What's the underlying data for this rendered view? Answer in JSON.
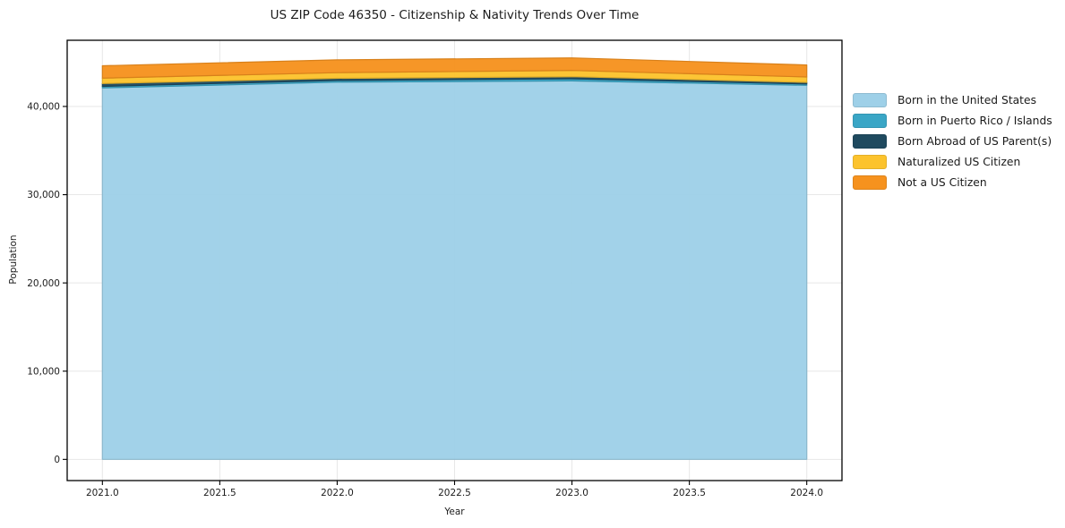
{
  "title": "US ZIP Code 46350 - Citizenship & Nativity Trends Over Time",
  "chart_data": {
    "type": "area",
    "stacked": true,
    "title": "US ZIP Code 46350 - Citizenship & Nativity Trends Over Time",
    "xlabel": "Year",
    "ylabel": "Population",
    "x": [
      2021,
      2022,
      2023,
      2024
    ],
    "xlim": [
      2020.85,
      2024.15
    ],
    "ylim": [
      -2400,
      47500
    ],
    "grid": true,
    "legend_position": "right-of-plot",
    "xticks": [
      {
        "value": 2021.0,
        "label": "2021.0"
      },
      {
        "value": 2021.5,
        "label": "2021.5"
      },
      {
        "value": 2022.0,
        "label": "2022.0"
      },
      {
        "value": 2022.5,
        "label": "2022.5"
      },
      {
        "value": 2023.0,
        "label": "2023.0"
      },
      {
        "value": 2023.5,
        "label": "2023.5"
      },
      {
        "value": 2024.0,
        "label": "2024.0"
      }
    ],
    "yticks": [
      {
        "value": 0,
        "label": "0"
      },
      {
        "value": 10000,
        "label": "10,000"
      },
      {
        "value": 20000,
        "label": "20,000"
      },
      {
        "value": 30000,
        "label": "30,000"
      },
      {
        "value": 40000,
        "label": "40,000"
      }
    ],
    "series": [
      {
        "name": "Born in the United States",
        "color": "#9ed0e8",
        "values": [
          42100,
          42750,
          42900,
          42400
        ]
      },
      {
        "name": "Born in Puerto Rico / Islands",
        "color": "#3aa6c6",
        "values": [
          180,
          200,
          240,
          150
        ]
      },
      {
        "name": "Born Abroad of US Parent(s)",
        "color": "#1f4a5f",
        "values": [
          320,
          240,
          230,
          180
        ]
      },
      {
        "name": "Naturalized US Citizen",
        "color": "#fcc32d",
        "values": [
          610,
          640,
          710,
          610
        ]
      },
      {
        "name": "Not a US Citizen",
        "color": "#f6921e",
        "values": [
          1400,
          1450,
          1420,
          1360
        ]
      }
    ],
    "colors": {
      "grid": "#e7e7e7",
      "spine": "#000000",
      "tick_text": "#1c1c1c"
    }
  }
}
